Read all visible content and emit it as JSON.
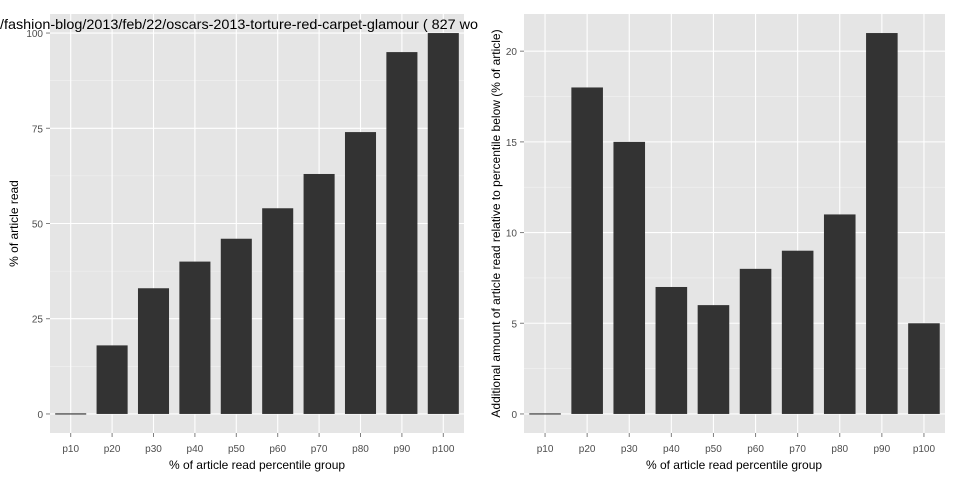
{
  "colors": {
    "panel_bg": "#e5e5e5",
    "grid_major": "#ffffff",
    "grid_minor": "#f2f2f2",
    "bar_fill": "#333333",
    "tick_text": "#4d4d4d",
    "label_text": "#000000"
  },
  "chart_data": [
    {
      "type": "bar",
      "title": "/fashion-blog/2013/feb/22/oscars-2013-torture-red-carpet-glamour ( 827 wo",
      "xlabel": "% of article read percentile group",
      "ylabel": "% of article read",
      "categories": [
        "p10",
        "p20",
        "p30",
        "p40",
        "p50",
        "p60",
        "p70",
        "p80",
        "p90",
        "p100"
      ],
      "values": [
        0,
        18,
        33,
        40,
        46,
        54,
        63,
        74,
        95,
        100
      ],
      "ylim": [
        -5,
        105
      ],
      "yticks": [
        0,
        25,
        50,
        75,
        100
      ],
      "grid": true
    },
    {
      "type": "bar",
      "title": "",
      "xlabel": "% of article read percentile group",
      "ylabel": "Additional amount of article read relative to percentile below (% of article)",
      "categories": [
        "p10",
        "p20",
        "p30",
        "p40",
        "p50",
        "p60",
        "p70",
        "p80",
        "p90",
        "p100"
      ],
      "values": [
        0,
        18,
        15,
        7,
        6,
        8,
        9,
        11,
        21,
        5
      ],
      "ylim": [
        -1.05,
        22.05
      ],
      "yticks": [
        0,
        5,
        10,
        15,
        20
      ],
      "grid": true
    }
  ]
}
